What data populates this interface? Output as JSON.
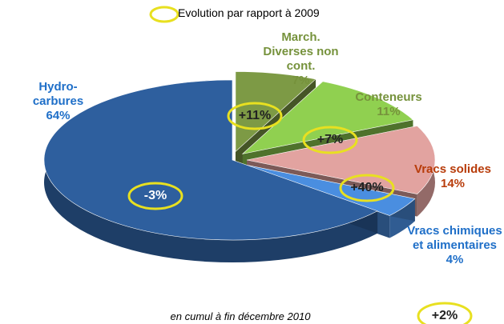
{
  "chart_data": {
    "type": "pie3d",
    "legend": "Evolution par rapport à 2009",
    "footnote": "en cumul à fin décembre 2010",
    "categories": [
      "March. Diverses non cont.",
      "Conteneurs",
      "Vracs solides",
      "Vracs chimiques et alimentaires",
      "Hydro-carbures"
    ],
    "values": [
      7,
      11,
      14,
      4,
      64
    ],
    "value_labels": [
      "7%",
      "11%",
      "14%",
      "4%",
      "64%"
    ],
    "colors": [
      "#7d9a45",
      "#90d050",
      "#e2a3a0",
      "#4a8ee0",
      "#2e5f9e"
    ],
    "label_colors": [
      "#76923c",
      "#76923c",
      "#b83c0a",
      "#1f6fc8",
      "#1f6fc8"
    ],
    "evolution": {
      "values": [
        11,
        7,
        40,
        2,
        -3
      ],
      "value_labels": [
        "+11%",
        "+7%",
        "+40%",
        "+2%",
        "-3%"
      ]
    }
  }
}
